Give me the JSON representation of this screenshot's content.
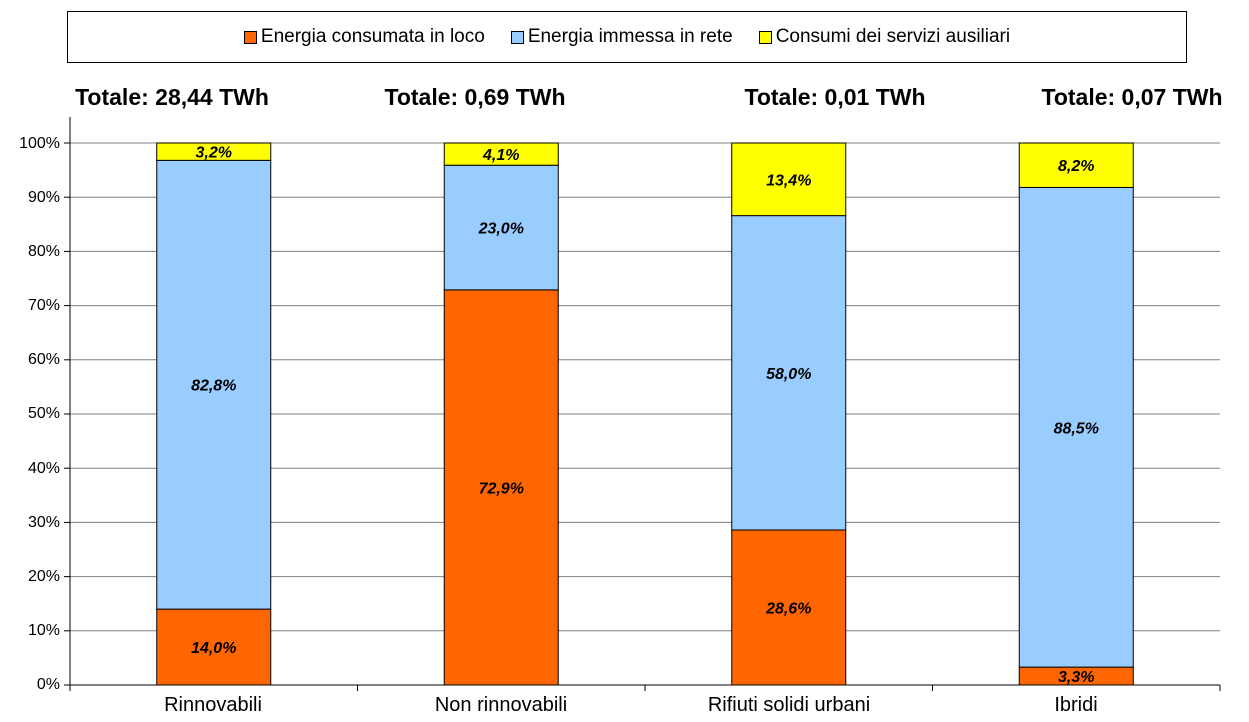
{
  "chart_data": {
    "type": "bar",
    "stacked": true,
    "orientation": "vertical",
    "categories": [
      "Rinnovabili",
      "Non rinnovabili",
      "Rifiuti solidi urbani",
      "Ibridi"
    ],
    "totals": [
      "Totale: 28,44 TWh",
      "Totale: 0,69 TWh",
      "Totale: 0,01 TWh",
      "Totale: 0,07 TWh"
    ],
    "series": [
      {
        "name": "Energia consumata in loco",
        "color": "#ff6600",
        "values": [
          14.0,
          72.9,
          28.6,
          3.3
        ],
        "labels": [
          "14,0%",
          "72,9%",
          "28,6%",
          "3,3%"
        ]
      },
      {
        "name": "Energia immessa in rete",
        "color": "#99ccff",
        "values": [
          82.8,
          23.0,
          58.0,
          88.5
        ],
        "labels": [
          "82,8%",
          "23,0%",
          "58,0%",
          "88,5%"
        ]
      },
      {
        "name": "Consumi dei servizi ausiliari",
        "color": "#ffff00",
        "values": [
          3.2,
          4.1,
          13.4,
          8.2
        ],
        "labels": [
          "3,2%",
          "4,1%",
          "13,4%",
          "8,2%"
        ]
      }
    ],
    "yticks": [
      "0%",
      "10%",
      "20%",
      "30%",
      "40%",
      "50%",
      "60%",
      "70%",
      "80%",
      "90%",
      "100%"
    ],
    "ylim": [
      0,
      100
    ],
    "grid": true,
    "legend": "top"
  }
}
